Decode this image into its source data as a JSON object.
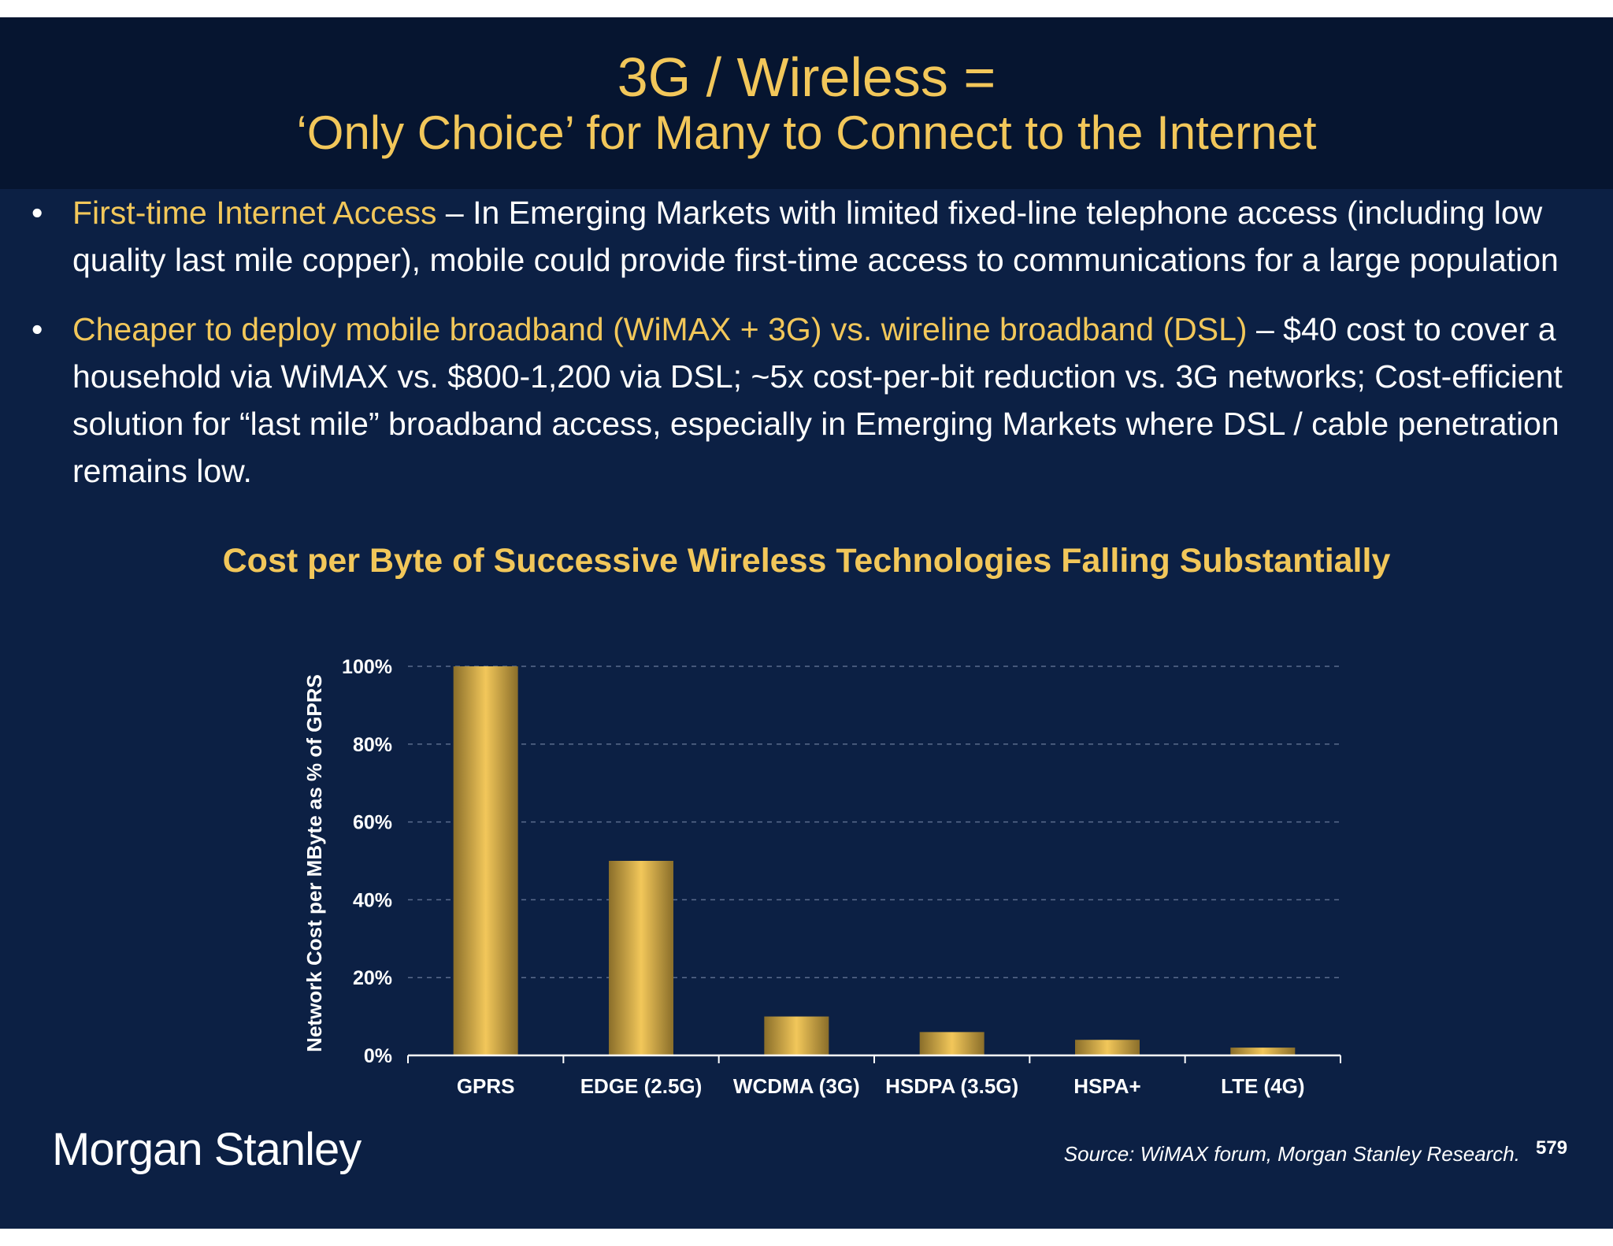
{
  "slide": {
    "title_line1": "3G / Wireless =",
    "title_line2": "‘Only Choice’ for Many to Connect to the Internet",
    "bullets": [
      {
        "highlight": "First-time Internet Access",
        "text": " – In Emerging Markets with limited fixed-line telephone access (including low quality last mile copper), mobile could provide first-time access to communications for a large population"
      },
      {
        "highlight": "Cheaper to deploy mobile broadband (WiMAX + 3G) vs. wireline broadband (DSL)",
        "text": " – $40 cost to cover a household via WiMAX vs. $800-1,200 via DSL; ~5x cost-per-bit reduction vs. 3G networks; Cost-efficient solution for “last mile” broadband access, especially in Emerging Markets where DSL / cable penetration remains low."
      }
    ],
    "brand": "Morgan Stanley",
    "source": "Source: WiMAX forum, Morgan Stanley Research.",
    "page_number": "579"
  },
  "colors": {
    "background": "#0c2044",
    "title_band": "#061530",
    "accent": "#f2c75a",
    "text": "#ffffff"
  },
  "chart_data": {
    "type": "bar",
    "title": "Cost per Byte of Successive Wireless Technologies Falling Substantially",
    "xlabel": "",
    "ylabel": "Network Cost per MByte as % of GPRS",
    "categories": [
      "GPRS",
      "EDGE (2.5G)",
      "WCDMA (3G)",
      "HSDPA (3.5G)",
      "HSPA+",
      "LTE (4G)"
    ],
    "values": [
      100,
      50,
      10,
      6,
      4,
      2
    ],
    "ylim": [
      0,
      100
    ],
    "yticks": [
      0,
      20,
      40,
      60,
      80,
      100
    ],
    "ytick_labels": [
      "0%",
      "20%",
      "40%",
      "60%",
      "80%",
      "100%"
    ],
    "grid": true,
    "legend": "none",
    "bar_color": "#f2c75a"
  }
}
